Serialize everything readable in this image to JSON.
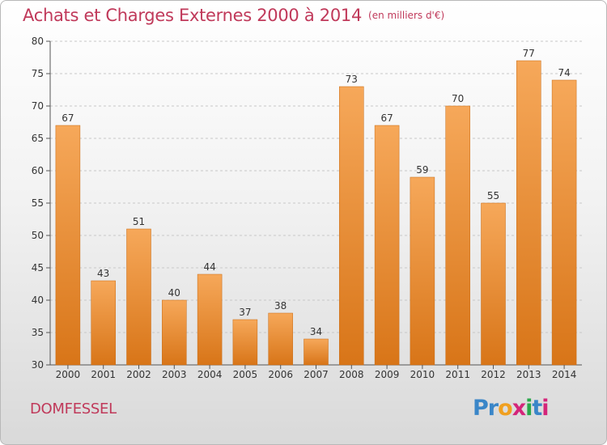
{
  "title": "Achats et Charges Externes 2000 à 2014",
  "unit": "(en milliers d'€)",
  "commune": "DOMFESSEL",
  "logo": {
    "letters": [
      "P",
      "r",
      "o",
      "x",
      "i",
      "t",
      "i"
    ],
    "colors": [
      "#3a86c8",
      "#3a86c8",
      "#f0a020",
      "#d4257a",
      "#2aa84a",
      "#3a86c8",
      "#d4257a"
    ]
  },
  "colors": {
    "title": "#c0395a",
    "bar_top": "#f6a85a",
    "bar_bottom": "#d87518",
    "bar_edge": "#c86a12"
  },
  "chart_data": {
    "type": "bar",
    "categories": [
      "2000",
      "2001",
      "2002",
      "2003",
      "2004",
      "2005",
      "2006",
      "2007",
      "2008",
      "2009",
      "2010",
      "2011",
      "2012",
      "2013",
      "2014"
    ],
    "values": [
      67,
      43,
      51,
      40,
      44,
      37,
      38,
      34,
      73,
      67,
      59,
      70,
      55,
      77,
      74
    ],
    "ylim": [
      30,
      80
    ],
    "yticks": [
      30,
      35,
      40,
      45,
      50,
      55,
      60,
      65,
      70,
      75,
      80
    ],
    "grid": true,
    "title": "Achats et Charges Externes 2000 à 2014",
    "xlabel": "",
    "ylabel": ""
  }
}
